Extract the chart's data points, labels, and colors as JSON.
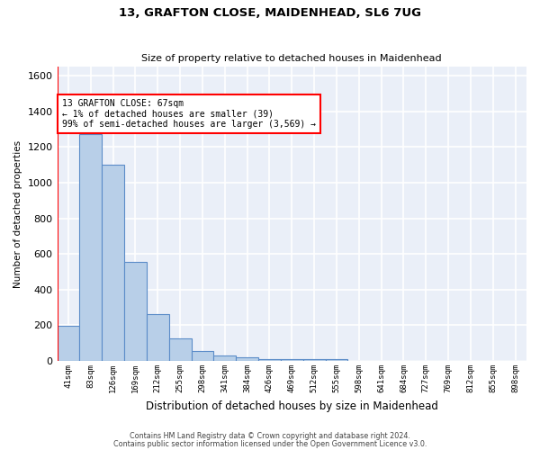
{
  "title1": "13, GRAFTON CLOSE, MAIDENHEAD, SL6 7UG",
  "title2": "Size of property relative to detached houses in Maidenhead",
  "xlabel": "Distribution of detached houses by size in Maidenhead",
  "ylabel": "Number of detached properties",
  "bar_labels": [
    "41sqm",
    "83sqm",
    "126sqm",
    "169sqm",
    "212sqm",
    "255sqm",
    "298sqm",
    "341sqm",
    "384sqm",
    "426sqm",
    "469sqm",
    "512sqm",
    "555sqm",
    "598sqm",
    "641sqm",
    "684sqm",
    "727sqm",
    "769sqm",
    "812sqm",
    "855sqm",
    "898sqm"
  ],
  "bar_values": [
    195,
    1270,
    1100,
    555,
    265,
    125,
    55,
    30,
    20,
    10,
    10,
    10,
    10,
    0,
    0,
    0,
    0,
    0,
    0,
    0,
    0
  ],
  "bar_color": "#b8cfe8",
  "bar_edge_color": "#5b8cc8",
  "annotation_line1": "13 GRAFTON CLOSE: 67sqm",
  "annotation_line2": "← 1% of detached houses are smaller (39)",
  "annotation_line3": "99% of semi-detached houses are larger (3,569) →",
  "ylim": [
    0,
    1650
  ],
  "yticks": [
    0,
    200,
    400,
    600,
    800,
    1000,
    1200,
    1400,
    1600
  ],
  "bg_color": "#eaeff8",
  "grid_color": "#ffffff",
  "footer1": "Contains HM Land Registry data © Crown copyright and database right 2024.",
  "footer2": "Contains public sector information licensed under the Open Government Licence v3.0."
}
